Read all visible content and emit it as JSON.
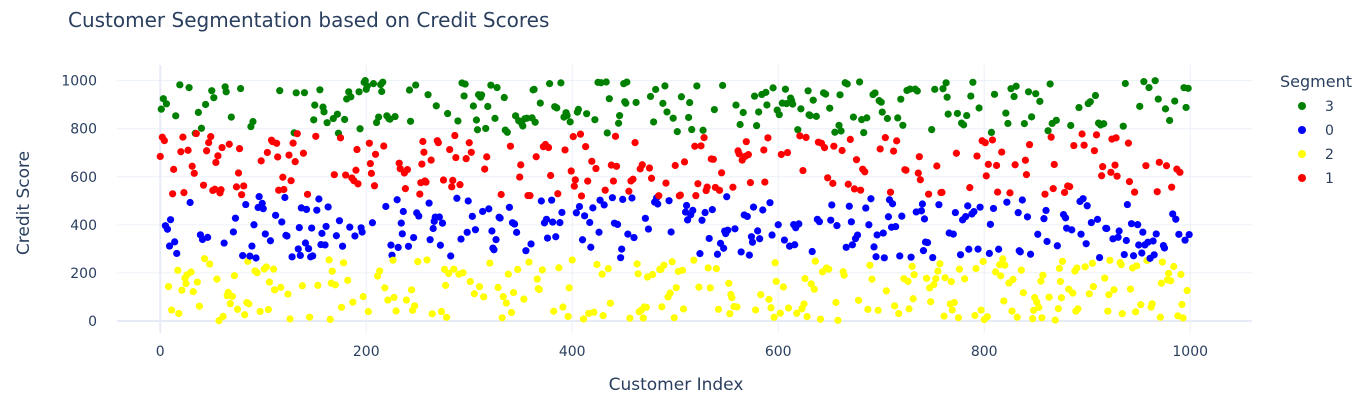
{
  "chart_data": {
    "type": "scatter",
    "title": "Customer Segmentation based on Credit Scores",
    "xlabel": "Customer Index",
    "ylabel": "Credit Score",
    "xlim": [
      -42,
      1060
    ],
    "ylim": [
      -50,
      1065
    ],
    "x_ticks": [
      0,
      200,
      400,
      600,
      800,
      1000
    ],
    "y_ticks": [
      0,
      200,
      400,
      600,
      800,
      1000
    ],
    "grid": true,
    "legend": {
      "title": "Segment",
      "placement": "right"
    },
    "n_points": 1000,
    "series": [
      {
        "name": "3",
        "color": "#008000",
        "y_range": [
          780,
          1000
        ],
        "approx_count": 240
      },
      {
        "name": "0",
        "color": "#0000ff",
        "y_range": [
          260,
          520
        ],
        "approx_count": 250
      },
      {
        "name": "2",
        "color": "#ffff00",
        "y_range": [
          0,
          260
        ],
        "approx_count": 260
      },
      {
        "name": "1",
        "color": "#ff0000",
        "y_range": [
          520,
          780
        ],
        "approx_count": 250
      }
    ]
  }
}
